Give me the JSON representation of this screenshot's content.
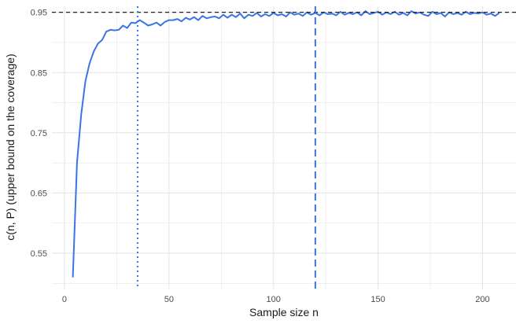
{
  "chart_data": {
    "type": "line",
    "xlabel": "Sample size n",
    "ylabel": "c(n, P) (upper bound on the coverage)",
    "xlim": [
      -6,
      216
    ],
    "ylim": [
      0.49,
      0.96
    ],
    "x_ticks": [
      0,
      50,
      100,
      150,
      200
    ],
    "y_ticks": [
      0.55,
      0.65,
      0.75,
      0.85,
      0.95
    ],
    "y_tick_labels": [
      "0.55",
      "0.65",
      "0.75",
      "0.85",
      "0.95"
    ],
    "grid": true,
    "colors": {
      "series": "#3b74e4",
      "reference": "#222222",
      "grid": "#e6e6e6"
    },
    "reference_lines": [
      {
        "orientation": "horizontal",
        "value": 0.95,
        "style": "dashed",
        "color": "#222222"
      },
      {
        "orientation": "vertical",
        "value": 35,
        "style": "dotted",
        "color": "#3b74e4"
      },
      {
        "orientation": "vertical",
        "value": 120,
        "style": "dashed",
        "color": "#3b74e4"
      }
    ],
    "series": [
      {
        "x": [
          4,
          6,
          8,
          10,
          12,
          14,
          16,
          18,
          20,
          22,
          24,
          26,
          28,
          30,
          32,
          34,
          36,
          38,
          40,
          42,
          44,
          46,
          48,
          50,
          52,
          54,
          56,
          58,
          60,
          62,
          64,
          66,
          68,
          70,
          72,
          74,
          76,
          78,
          80,
          82,
          84,
          86,
          88,
          90,
          92,
          94,
          96,
          98,
          100,
          102,
          104,
          106,
          108,
          110,
          112,
          114,
          116,
          118,
          120,
          122,
          124,
          126,
          128,
          130,
          132,
          134,
          136,
          138,
          140,
          142,
          144,
          146,
          148,
          150,
          152,
          154,
          156,
          158,
          160,
          162,
          164,
          166,
          168,
          170,
          172,
          174,
          176,
          178,
          180,
          182,
          184,
          186,
          188,
          190,
          192,
          194,
          196,
          198,
          200,
          202,
          204,
          206,
          208
        ],
        "values": [
          0.51,
          0.7,
          0.78,
          0.835,
          0.865,
          0.885,
          0.898,
          0.904,
          0.918,
          0.921,
          0.92,
          0.921,
          0.928,
          0.924,
          0.933,
          0.932,
          0.937,
          0.933,
          0.928,
          0.93,
          0.933,
          0.928,
          0.934,
          0.937,
          0.937,
          0.939,
          0.935,
          0.941,
          0.938,
          0.942,
          0.937,
          0.944,
          0.94,
          0.942,
          0.943,
          0.94,
          0.946,
          0.941,
          0.946,
          0.942,
          0.948,
          0.94,
          0.946,
          0.944,
          0.949,
          0.943,
          0.947,
          0.944,
          0.949,
          0.945,
          0.947,
          0.943,
          0.95,
          0.946,
          0.948,
          0.944,
          0.95,
          0.946,
          0.949,
          0.945,
          0.95,
          0.947,
          0.948,
          0.945,
          0.951,
          0.946,
          0.949,
          0.947,
          0.95,
          0.945,
          0.952,
          0.947,
          0.949,
          0.951,
          0.946,
          0.95,
          0.947,
          0.951,
          0.946,
          0.949,
          0.945,
          0.952,
          0.948,
          0.95,
          0.946,
          0.944,
          0.951,
          0.947,
          0.949,
          0.943,
          0.95,
          0.947,
          0.949,
          0.946,
          0.951,
          0.947,
          0.949,
          0.948,
          0.95,
          0.946,
          0.948,
          0.944,
          0.949
        ]
      }
    ]
  }
}
